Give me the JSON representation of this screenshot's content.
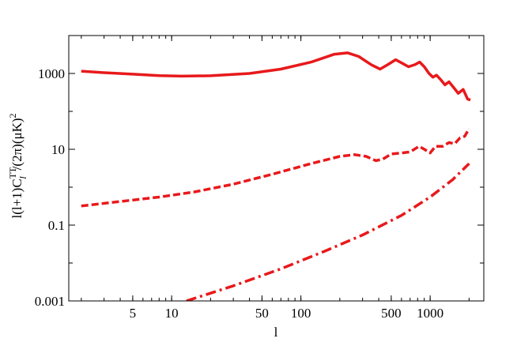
{
  "chart_data": {
    "type": "line",
    "title": "",
    "xlabel": "l",
    "ylabel": "l(l+1)C",
    "ylabel_sub": "l",
    "ylabel_sup": "TT",
    "ylabel_tail": "/(2π)(μK)",
    "ylabel_tail_sup": "2",
    "x_scale": "log",
    "y_scale": "log",
    "xlim": [
      1.6,
      2600
    ],
    "ylim": [
      0.001,
      10000
    ],
    "x_ticks": [
      {
        "value": 5,
        "label": "5"
      },
      {
        "value": 10,
        "label": "10"
      },
      {
        "value": 50,
        "label": "50"
      },
      {
        "value": 100,
        "label": "100"
      },
      {
        "value": 500,
        "label": "500"
      },
      {
        "value": 1000,
        "label": "1000"
      }
    ],
    "y_ticks": [
      {
        "value": 0.001,
        "label": "0.001"
      },
      {
        "value": 0.1,
        "label": "0.1"
      },
      {
        "value": 10,
        "label": "10"
      },
      {
        "value": 1000,
        "label": "1000"
      }
    ],
    "series_color": "#e8191b",
    "series": [
      {
        "style": "solid",
        "points": [
          [
            2,
            1150
          ],
          [
            3,
            1050
          ],
          [
            5,
            960
          ],
          [
            8,
            880
          ],
          [
            12,
            850
          ],
          [
            20,
            870
          ],
          [
            40,
            1000
          ],
          [
            70,
            1300
          ],
          [
            120,
            2000
          ],
          [
            180,
            3200
          ],
          [
            230,
            3500
          ],
          [
            280,
            2800
          ],
          [
            350,
            1700
          ],
          [
            410,
            1300
          ],
          [
            470,
            1700
          ],
          [
            540,
            2300
          ],
          [
            600,
            1900
          ],
          [
            680,
            1500
          ],
          [
            760,
            1700
          ],
          [
            830,
            2000
          ],
          [
            900,
            1500
          ],
          [
            980,
            1000
          ],
          [
            1050,
            800
          ],
          [
            1120,
            900
          ],
          [
            1200,
            700
          ],
          [
            1300,
            500
          ],
          [
            1400,
            600
          ],
          [
            1500,
            450
          ],
          [
            1650,
            300
          ],
          [
            1800,
            380
          ],
          [
            1950,
            210
          ],
          [
            2050,
            200
          ]
        ]
      },
      {
        "style": "dashed",
        "points": [
          [
            2,
            0.32
          ],
          [
            4,
            0.42
          ],
          [
            8,
            0.55
          ],
          [
            15,
            0.75
          ],
          [
            30,
            1.2
          ],
          [
            60,
            2.2
          ],
          [
            120,
            4.2
          ],
          [
            200,
            6.5
          ],
          [
            260,
            7.2
          ],
          [
            320,
            6.5
          ],
          [
            380,
            5.0
          ],
          [
            430,
            5.5
          ],
          [
            500,
            7.5
          ],
          [
            600,
            8.0
          ],
          [
            700,
            8.5
          ],
          [
            820,
            12
          ],
          [
            900,
            10
          ],
          [
            1000,
            8.0
          ],
          [
            1100,
            12
          ],
          [
            1250,
            12
          ],
          [
            1400,
            15
          ],
          [
            1550,
            14
          ],
          [
            1700,
            20
          ],
          [
            1850,
            22
          ],
          [
            2000,
            35
          ]
        ]
      },
      {
        "style": "dashdot",
        "points": [
          [
            13,
            0.001
          ],
          [
            30,
            0.0025
          ],
          [
            70,
            0.007
          ],
          [
            150,
            0.02
          ],
          [
            300,
            0.055
          ],
          [
            600,
            0.18
          ],
          [
            1000,
            0.55
          ],
          [
            1500,
            1.6
          ],
          [
            2000,
            4.2
          ]
        ]
      }
    ]
  }
}
